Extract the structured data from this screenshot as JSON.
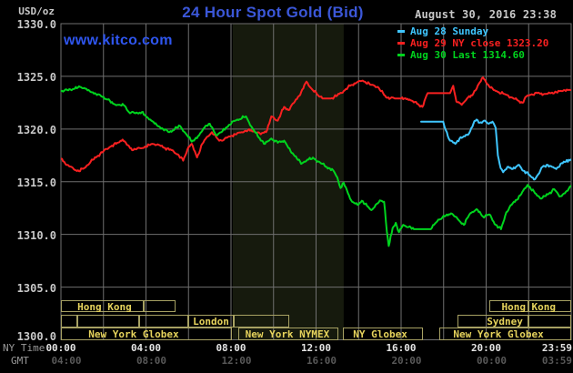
{
  "header": {
    "title": "24 Hour Spot Gold (Bid)",
    "timestamp": "August 30, 2016 23:38",
    "watermark": "www.kitco.com",
    "y_unit": "USD/oz"
  },
  "colors": {
    "title_blue": "#3b57d8",
    "kitco_blue": "#2f56f0",
    "text_gray": "#c8c8c8",
    "grid": "#6f6f6f",
    "band": "#161a0d",
    "session_border": "#a7a163",
    "session_text": "#e6d35c",
    "ny_tick": "#e4e4e4",
    "gmt_tick": "#585858",
    "axis_label": "#9a9a9a",
    "red": "#f82020",
    "green": "#00d41e",
    "blue": "#3fc6ff"
  },
  "legend": {
    "items": [
      {
        "label": "Aug 28 Sunday",
        "color_key": "blue"
      },
      {
        "label": "Aug 29 NY close 1323.20",
        "color_key": "red"
      },
      {
        "label": "Aug 30 Last 1314.60",
        "color_key": "green"
      }
    ]
  },
  "axis": {
    "ny_label": "NY Time",
    "gmt_label": "GMT",
    "yticks": [
      "1330.0",
      "1325.0",
      "1320.0",
      "1315.0",
      "1310.0",
      "1305.0",
      "1300.0"
    ],
    "xticks": [
      {
        "t": 0,
        "ny": "00:00",
        "gmt": "04:00"
      },
      {
        "t": 4,
        "ny": "04:00",
        "gmt": "08:00"
      },
      {
        "t": 8,
        "ny": "08:00",
        "gmt": "12:00"
      },
      {
        "t": 12,
        "ny": "12:00",
        "gmt": "16:00"
      },
      {
        "t": 16,
        "ny": "16:00",
        "gmt": "20:00"
      },
      {
        "t": 20,
        "ny": "20:00",
        "gmt": "00:00"
      },
      {
        "t": 23.983,
        "ny": "23:59",
        "gmt": "03:59"
      }
    ]
  },
  "sessions": {
    "rows": [
      {
        "y": 330,
        "h": 13
      },
      {
        "y": 346,
        "h": 14
      },
      {
        "y": 360,
        "h": 14
      }
    ],
    "boxes": [
      {
        "row": 0,
        "t1": 0,
        "t2": 3.89
      },
      {
        "row": 0,
        "t1": 3.89,
        "t2": 5.39
      },
      {
        "row": 0,
        "t1": 20.15,
        "t2": 22.0
      },
      {
        "row": 0,
        "t1": 22.0,
        "t2": 24
      },
      {
        "row": 1,
        "t1": 0,
        "t2": 0.77
      },
      {
        "row": 1,
        "t1": 0.77,
        "t2": 3.68
      },
      {
        "row": 1,
        "t1": 3.68,
        "t2": 5.99
      },
      {
        "row": 1,
        "t1": 5.99,
        "t2": 8.13
      },
      {
        "row": 1,
        "t1": 8.13,
        "t2": 10.74
      },
      {
        "row": 1,
        "t1": 18.65,
        "t2": 22.0
      },
      {
        "row": 1,
        "t1": 22.0,
        "t2": 24
      },
      {
        "row": 2,
        "t1": 0,
        "t2": 8.04
      },
      {
        "row": 2,
        "t1": 8.34,
        "t2": 13.05
      },
      {
        "row": 2,
        "t1": 13.26,
        "t2": 17.03
      },
      {
        "row": 2,
        "t1": 17.8,
        "t2": 24
      }
    ],
    "labels": [
      {
        "row": 0,
        "t": 2.05,
        "text": "Hong Kong"
      },
      {
        "row": 0,
        "t": 22.0,
        "text": "Hong Kong"
      },
      {
        "row": 1,
        "t": 7.06,
        "text": "London"
      },
      {
        "row": 1,
        "t": 20.88,
        "text": "Sydney"
      },
      {
        "row": 2,
        "t": 3.42,
        "text": "New York Globex"
      },
      {
        "row": 2,
        "t": 10.65,
        "text": "New York NYMEX"
      },
      {
        "row": 2,
        "t": 15.02,
        "text": "NY Globex"
      },
      {
        "row": 2,
        "t": 20.58,
        "text": "New York Globex"
      }
    ]
  },
  "chart_data": {
    "type": "line",
    "title": "24 Hour Spot Gold (Bid)",
    "x_unit": "hours, NY Time",
    "y_unit": "USD/oz",
    "xlim": [
      0,
      24
    ],
    "ylim": [
      1300,
      1330
    ],
    "grid": "vertical every 2h, horizontal every 5 USD",
    "active_band_hours": [
      8.08,
      13.3
    ],
    "legend_position": "top-right",
    "series": [
      {
        "name": "Aug 28 Sunday",
        "color_key": "blue",
        "points": [
          [
            16.94,
            1320.7
          ],
          [
            17.3,
            1320.7
          ],
          [
            17.7,
            1320.7
          ],
          [
            17.98,
            1320.7
          ],
          [
            18.1,
            1319.9
          ],
          [
            18.3,
            1318.9
          ],
          [
            18.55,
            1318.6
          ],
          [
            18.75,
            1319.1
          ],
          [
            19.0,
            1319.3
          ],
          [
            19.2,
            1319.6
          ],
          [
            19.4,
            1320.5
          ],
          [
            19.55,
            1320.9
          ],
          [
            19.7,
            1320.6
          ],
          [
            19.9,
            1320.8
          ],
          [
            20.1,
            1320.5
          ],
          [
            20.3,
            1320.7
          ],
          [
            20.45,
            1320.1
          ],
          [
            20.55,
            1317.5
          ],
          [
            20.68,
            1316.3
          ],
          [
            20.8,
            1315.9
          ],
          [
            21.0,
            1316.4
          ],
          [
            21.2,
            1316.2
          ],
          [
            21.4,
            1316.4
          ],
          [
            21.55,
            1316.6
          ],
          [
            21.7,
            1316.1
          ],
          [
            21.9,
            1315.9
          ],
          [
            22.1,
            1315.5
          ],
          [
            22.25,
            1315.2
          ],
          [
            22.45,
            1315.7
          ],
          [
            22.65,
            1316.4
          ],
          [
            22.9,
            1316.6
          ],
          [
            23.1,
            1316.4
          ],
          [
            23.3,
            1316.2
          ],
          [
            23.5,
            1316.7
          ],
          [
            23.75,
            1316.9
          ],
          [
            23.98,
            1317.1
          ]
        ]
      },
      {
        "name": "Aug 29 NY close 1323.20",
        "color_key": "red",
        "points": [
          [
            0.0,
            1317.2
          ],
          [
            0.3,
            1316.6
          ],
          [
            0.6,
            1316.2
          ],
          [
            0.85,
            1316.0
          ],
          [
            1.1,
            1316.3
          ],
          [
            1.4,
            1316.9
          ],
          [
            1.7,
            1317.4
          ],
          [
            2.0,
            1317.9
          ],
          [
            2.3,
            1318.3
          ],
          [
            2.6,
            1318.6
          ],
          [
            2.9,
            1319.0
          ],
          [
            3.1,
            1318.5
          ],
          [
            3.4,
            1318.0
          ],
          [
            3.7,
            1318.2
          ],
          [
            4.0,
            1318.3
          ],
          [
            4.3,
            1318.6
          ],
          [
            4.6,
            1318.5
          ],
          [
            4.9,
            1318.2
          ],
          [
            5.2,
            1318.0
          ],
          [
            5.5,
            1317.6
          ],
          [
            5.75,
            1317.0
          ],
          [
            6.0,
            1318.3
          ],
          [
            6.15,
            1318.6
          ],
          [
            6.4,
            1317.3
          ],
          [
            6.65,
            1318.6
          ],
          [
            6.9,
            1319.3
          ],
          [
            7.1,
            1319.7
          ],
          [
            7.4,
            1319.0
          ],
          [
            7.6,
            1318.9
          ],
          [
            7.9,
            1319.3
          ],
          [
            8.2,
            1319.5
          ],
          [
            8.5,
            1319.7
          ],
          [
            8.8,
            1319.9
          ],
          [
            9.1,
            1319.8
          ],
          [
            9.4,
            1319.5
          ],
          [
            9.7,
            1319.9
          ],
          [
            9.9,
            1321.2
          ],
          [
            10.2,
            1320.8
          ],
          [
            10.5,
            1322.1
          ],
          [
            10.7,
            1321.8
          ],
          [
            11.0,
            1322.6
          ],
          [
            11.3,
            1323.5
          ],
          [
            11.55,
            1324.5
          ],
          [
            11.8,
            1323.8
          ],
          [
            12.1,
            1323.2
          ],
          [
            12.4,
            1322.9
          ],
          [
            12.7,
            1322.9
          ],
          [
            13.0,
            1323.2
          ],
          [
            13.3,
            1323.6
          ],
          [
            13.6,
            1324.1
          ],
          [
            13.9,
            1324.4
          ],
          [
            14.2,
            1324.6
          ],
          [
            14.6,
            1324.2
          ],
          [
            14.9,
            1324.0
          ],
          [
            15.3,
            1323.0
          ],
          [
            15.7,
            1322.9
          ],
          [
            16.0,
            1322.9
          ],
          [
            16.4,
            1322.8
          ],
          [
            16.75,
            1322.4
          ],
          [
            17.0,
            1322.1
          ],
          [
            17.25,
            1323.4
          ],
          [
            17.6,
            1323.4
          ],
          [
            18.0,
            1323.4
          ],
          [
            18.3,
            1323.4
          ],
          [
            18.45,
            1324.1
          ],
          [
            18.6,
            1322.6
          ],
          [
            18.85,
            1322.3
          ],
          [
            19.1,
            1322.9
          ],
          [
            19.35,
            1323.2
          ],
          [
            19.6,
            1324.1
          ],
          [
            19.85,
            1324.9
          ],
          [
            20.1,
            1324.2
          ],
          [
            20.35,
            1323.7
          ],
          [
            20.6,
            1323.5
          ],
          [
            20.9,
            1323.3
          ],
          [
            21.2,
            1323.0
          ],
          [
            21.5,
            1322.7
          ],
          [
            21.7,
            1322.5
          ],
          [
            21.9,
            1323.1
          ],
          [
            22.15,
            1323.3
          ],
          [
            22.4,
            1323.4
          ],
          [
            22.7,
            1323.3
          ],
          [
            23.0,
            1323.4
          ],
          [
            23.3,
            1323.5
          ],
          [
            23.6,
            1323.6
          ],
          [
            23.98,
            1323.7
          ]
        ]
      },
      {
        "name": "Aug 30 Last 1314.60",
        "color_key": "green",
        "points": [
          [
            0.0,
            1323.6
          ],
          [
            0.3,
            1323.7
          ],
          [
            0.6,
            1323.8
          ],
          [
            0.9,
            1324.0
          ],
          [
            1.1,
            1323.9
          ],
          [
            1.35,
            1323.6
          ],
          [
            1.6,
            1323.4
          ],
          [
            1.9,
            1323.1
          ],
          [
            2.2,
            1322.8
          ],
          [
            2.45,
            1322.4
          ],
          [
            2.7,
            1322.3
          ],
          [
            3.0,
            1322.2
          ],
          [
            3.2,
            1321.6
          ],
          [
            3.5,
            1321.5
          ],
          [
            3.8,
            1321.6
          ],
          [
            4.0,
            1321.2
          ],
          [
            4.2,
            1320.9
          ],
          [
            4.5,
            1320.4
          ],
          [
            4.8,
            1320.0
          ],
          [
            5.1,
            1319.7
          ],
          [
            5.35,
            1320.0
          ],
          [
            5.6,
            1320.3
          ],
          [
            5.9,
            1319.5
          ],
          [
            6.15,
            1318.8
          ],
          [
            6.5,
            1319.4
          ],
          [
            6.8,
            1320.3
          ],
          [
            7.0,
            1320.5
          ],
          [
            7.3,
            1319.4
          ],
          [
            7.6,
            1319.8
          ],
          [
            7.9,
            1320.4
          ],
          [
            8.2,
            1320.8
          ],
          [
            8.7,
            1321.2
          ],
          [
            9.0,
            1320.1
          ],
          [
            9.3,
            1319.2
          ],
          [
            9.6,
            1318.6
          ],
          [
            9.9,
            1319.1
          ],
          [
            10.2,
            1318.7
          ],
          [
            10.5,
            1318.9
          ],
          [
            10.8,
            1317.9
          ],
          [
            11.05,
            1317.4
          ],
          [
            11.3,
            1316.7
          ],
          [
            11.6,
            1317.1
          ],
          [
            11.9,
            1317.2
          ],
          [
            12.2,
            1316.8
          ],
          [
            12.5,
            1316.4
          ],
          [
            12.8,
            1316.1
          ],
          [
            13.0,
            1315.4
          ],
          [
            13.15,
            1314.4
          ],
          [
            13.3,
            1314.9
          ],
          [
            13.5,
            1313.9
          ],
          [
            13.7,
            1313.1
          ],
          [
            13.95,
            1312.8
          ],
          [
            14.15,
            1313.2
          ],
          [
            14.4,
            1312.7
          ],
          [
            14.6,
            1312.3
          ],
          [
            14.85,
            1312.9
          ],
          [
            15.05,
            1313.2
          ],
          [
            15.2,
            1313.1
          ],
          [
            15.33,
            1310.3
          ],
          [
            15.42,
            1308.9
          ],
          [
            15.6,
            1310.6
          ],
          [
            15.75,
            1311.1
          ],
          [
            15.9,
            1310.2
          ],
          [
            16.1,
            1310.9
          ],
          [
            16.35,
            1310.7
          ],
          [
            16.6,
            1310.5
          ],
          [
            17.0,
            1310.5
          ],
          [
            17.4,
            1310.5
          ],
          [
            17.75,
            1311.4
          ],
          [
            18.05,
            1311.7
          ],
          [
            18.35,
            1312.0
          ],
          [
            18.65,
            1311.5
          ],
          [
            18.95,
            1310.9
          ],
          [
            19.25,
            1312.0
          ],
          [
            19.55,
            1312.4
          ],
          [
            19.85,
            1311.7
          ],
          [
            20.15,
            1311.9
          ],
          [
            20.45,
            1310.9
          ],
          [
            20.7,
            1310.5
          ],
          [
            20.95,
            1312.1
          ],
          [
            21.2,
            1312.8
          ],
          [
            21.6,
            1313.7
          ],
          [
            21.95,
            1314.7
          ],
          [
            22.3,
            1313.9
          ],
          [
            22.6,
            1313.4
          ],
          [
            22.9,
            1313.8
          ],
          [
            23.2,
            1314.3
          ],
          [
            23.45,
            1313.6
          ],
          [
            23.7,
            1313.9
          ],
          [
            23.98,
            1314.6
          ]
        ]
      }
    ]
  }
}
